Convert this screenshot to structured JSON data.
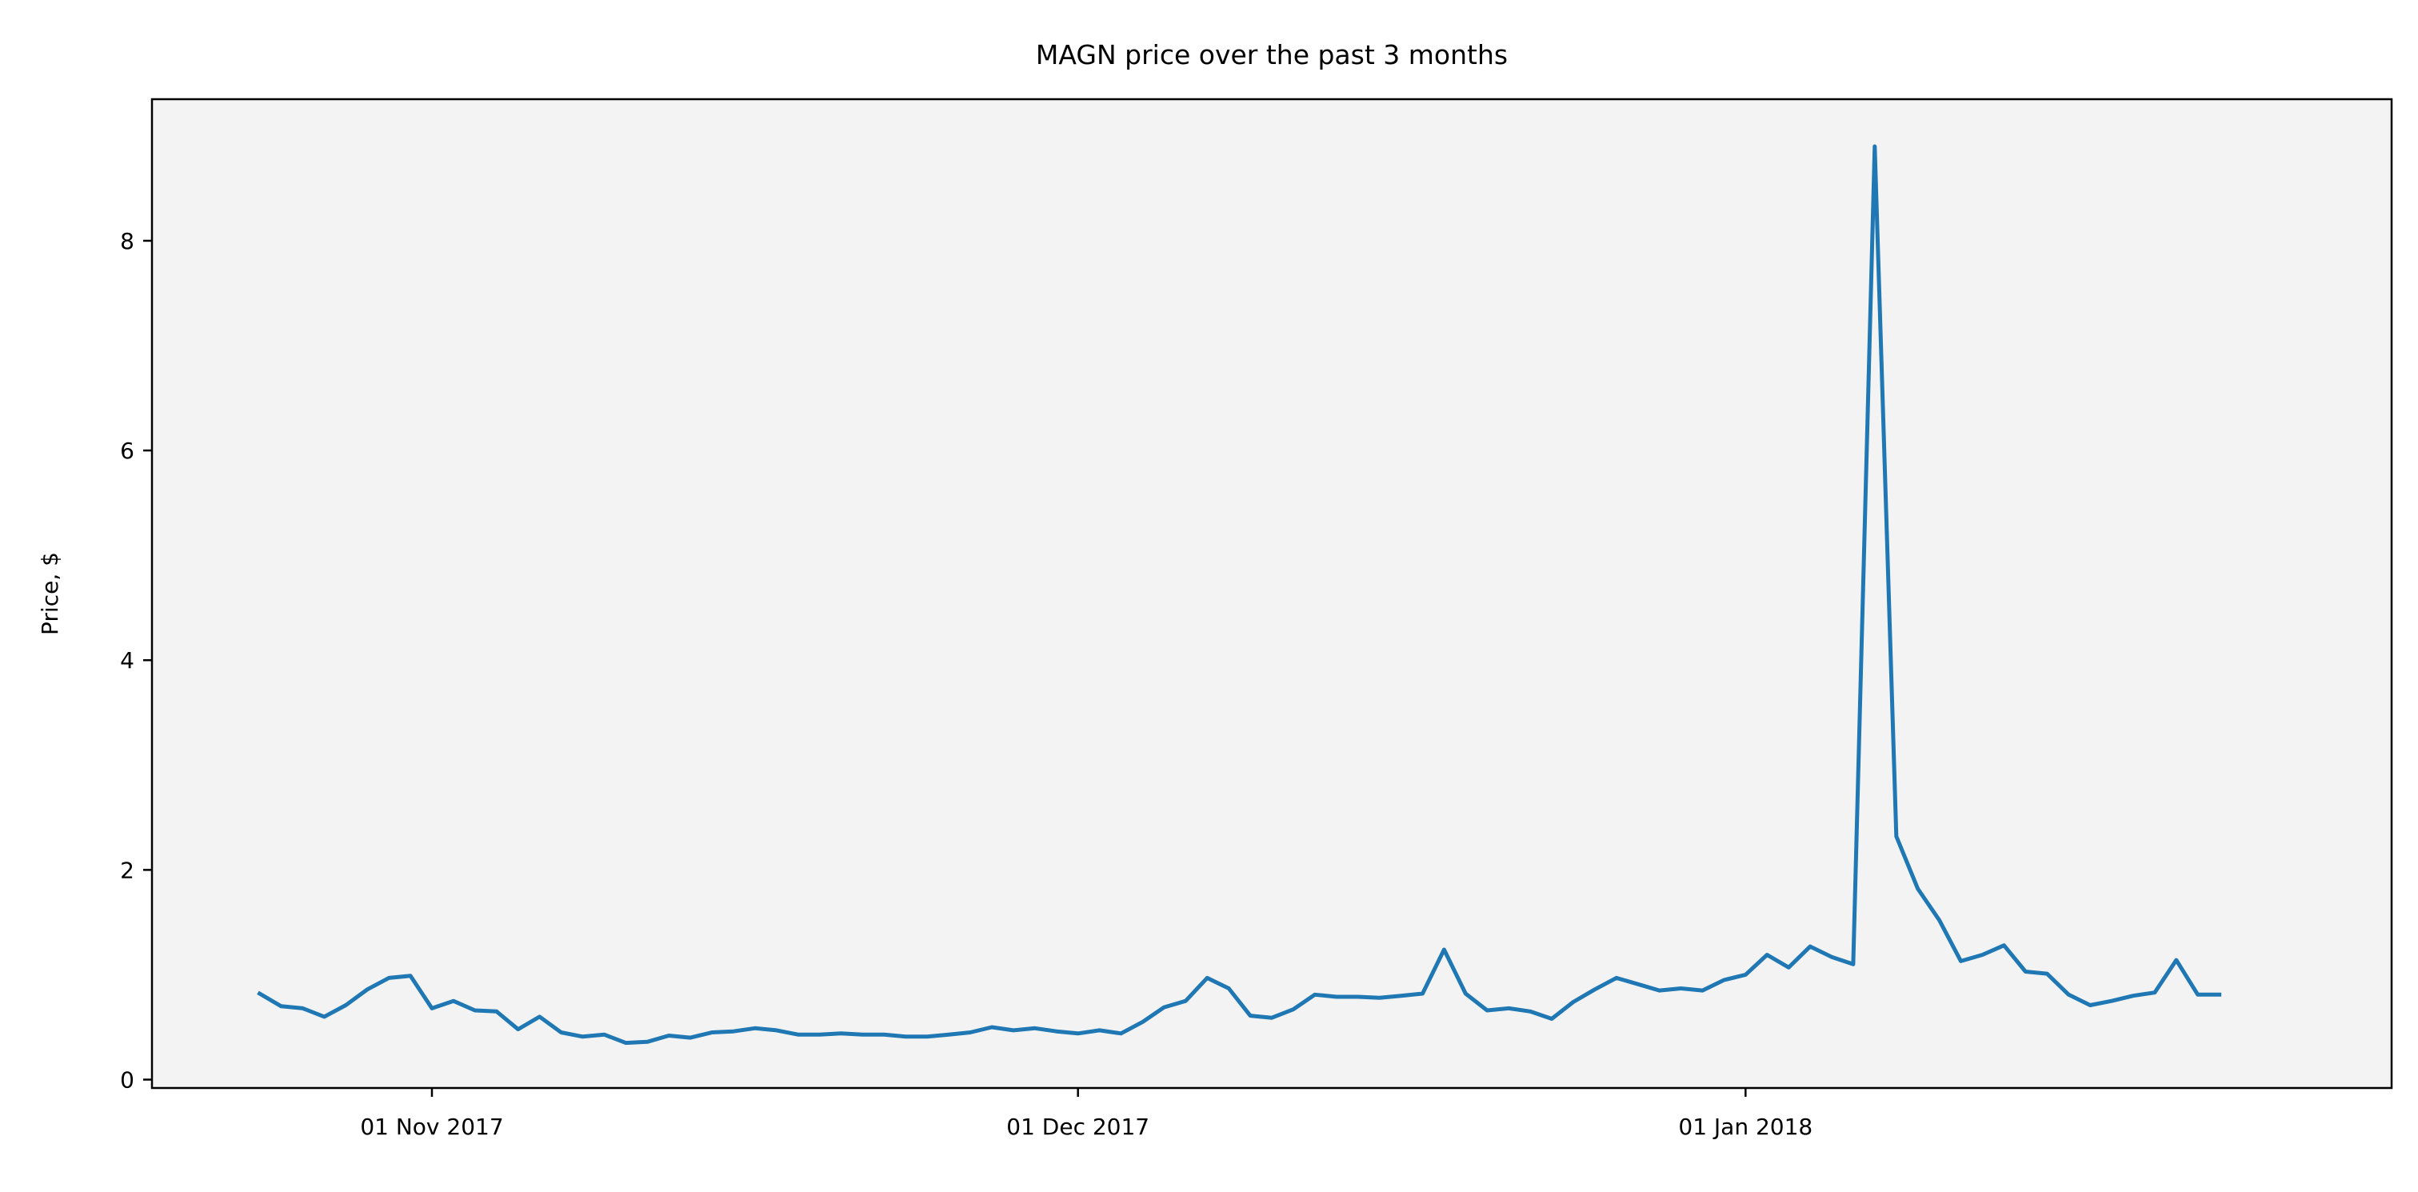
{
  "chart_data": {
    "type": "line",
    "title": "MAGN price over the past 3 months",
    "xlabel": "",
    "ylabel": "Price, $",
    "grid": false,
    "legend": "none",
    "colors": {
      "line": "#1f77b4",
      "plot_background": "#f3f3f3"
    },
    "x_tick_labels": [
      "01 Nov 2017",
      "01 Dec 2017",
      "01 Jan 2018"
    ],
    "x_tick_dates": [
      "2017-11-01",
      "2017-12-01",
      "2018-01-01"
    ],
    "xlim": [
      "2017-10-19",
      "2018-01-31"
    ],
    "y_ticks": [
      0,
      2,
      4,
      6,
      8
    ],
    "ylim": [
      -0.08,
      9.35
    ],
    "series": [
      {
        "x": [
          "2017-10-24",
          "2017-10-25",
          "2017-10-26",
          "2017-10-27",
          "2017-10-28",
          "2017-10-29",
          "2017-10-30",
          "2017-10-31",
          "2017-11-01",
          "2017-11-02",
          "2017-11-03",
          "2017-11-04",
          "2017-11-05",
          "2017-11-06",
          "2017-11-07",
          "2017-11-08",
          "2017-11-09",
          "2017-11-10",
          "2017-11-11",
          "2017-11-12",
          "2017-11-13",
          "2017-11-14",
          "2017-11-15",
          "2017-11-16",
          "2017-11-17",
          "2017-11-18",
          "2017-11-19",
          "2017-11-20",
          "2017-11-21",
          "2017-11-22",
          "2017-11-23",
          "2017-11-24",
          "2017-11-25",
          "2017-11-26",
          "2017-11-27",
          "2017-11-28",
          "2017-11-29",
          "2017-11-30",
          "2017-12-01",
          "2017-12-02",
          "2017-12-03",
          "2017-12-04",
          "2017-12-05",
          "2017-12-06",
          "2017-12-07",
          "2017-12-08",
          "2017-12-09",
          "2017-12-10",
          "2017-12-11",
          "2017-12-12",
          "2017-12-13",
          "2017-12-14",
          "2017-12-15",
          "2017-12-16",
          "2017-12-17",
          "2017-12-18",
          "2017-12-19",
          "2017-12-20",
          "2017-12-21",
          "2017-12-22",
          "2017-12-23",
          "2017-12-24",
          "2017-12-25",
          "2017-12-26",
          "2017-12-27",
          "2017-12-28",
          "2017-12-29",
          "2017-12-30",
          "2017-12-31",
          "2018-01-01",
          "2018-01-02",
          "2018-01-03",
          "2018-01-04",
          "2018-01-05",
          "2018-01-06",
          "2018-01-07",
          "2018-01-08",
          "2018-01-09",
          "2018-01-10",
          "2018-01-11",
          "2018-01-12",
          "2018-01-13",
          "2018-01-14",
          "2018-01-15",
          "2018-01-16",
          "2018-01-17",
          "2018-01-18",
          "2018-01-19",
          "2018-01-20",
          "2018-01-21",
          "2018-01-22",
          "2018-01-23"
        ],
        "values": [
          0.82,
          0.7,
          0.68,
          0.6,
          0.71,
          0.86,
          0.97,
          0.99,
          0.68,
          0.75,
          0.66,
          0.65,
          0.48,
          0.6,
          0.45,
          0.41,
          0.43,
          0.35,
          0.36,
          0.42,
          0.4,
          0.45,
          0.46,
          0.49,
          0.47,
          0.43,
          0.43,
          0.44,
          0.43,
          0.43,
          0.41,
          0.41,
          0.43,
          0.45,
          0.5,
          0.47,
          0.49,
          0.46,
          0.44,
          0.47,
          0.44,
          0.55,
          0.69,
          0.75,
          0.97,
          0.87,
          0.61,
          0.59,
          0.67,
          0.81,
          0.79,
          0.79,
          0.78,
          0.8,
          0.82,
          1.24,
          0.82,
          0.66,
          0.68,
          0.65,
          0.58,
          0.74,
          0.86,
          0.97,
          0.91,
          0.85,
          0.87,
          0.85,
          0.95,
          1.0,
          1.19,
          1.07,
          1.27,
          1.17,
          1.1,
          8.9,
          2.32,
          1.82,
          1.52,
          1.13,
          1.19,
          1.28,
          1.03,
          1.01,
          0.81,
          0.71,
          0.75,
          0.8,
          0.83,
          1.14,
          0.81,
          0.81
        ]
      }
    ]
  }
}
